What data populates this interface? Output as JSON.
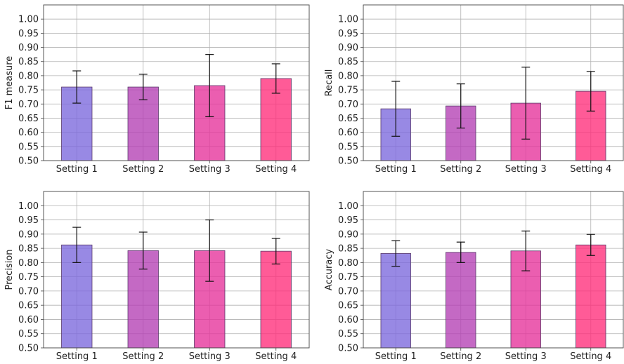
{
  "chart_data": [
    {
      "type": "bar",
      "ylabel": "F1 measure",
      "categories": [
        "Setting 1",
        "Setting 2",
        "Setting 3",
        "Setting 4"
      ],
      "values": [
        0.76,
        0.76,
        0.765,
        0.79
      ],
      "errors": [
        0.057,
        0.045,
        0.11,
        0.052
      ],
      "ylim": [
        0.5,
        1.05
      ],
      "yticks": [
        "0.50",
        "0.55",
        "0.60",
        "0.65",
        "0.70",
        "0.75",
        "0.80",
        "0.85",
        "0.90",
        "0.95",
        "1.00"
      ],
      "grid": true
    },
    {
      "type": "bar",
      "ylabel": "Recall",
      "categories": [
        "Setting 1",
        "Setting 2",
        "Setting 3",
        "Setting 4"
      ],
      "values": [
        0.683,
        0.693,
        0.703,
        0.745
      ],
      "errors": [
        0.097,
        0.078,
        0.127,
        0.07
      ],
      "ylim": [
        0.5,
        1.05
      ],
      "yticks": [
        "0.50",
        "0.55",
        "0.60",
        "0.65",
        "0.70",
        "0.75",
        "0.80",
        "0.85",
        "0.90",
        "0.95",
        "1.00"
      ],
      "grid": true
    },
    {
      "type": "bar",
      "ylabel": "Precision",
      "categories": [
        "Setting 1",
        "Setting 2",
        "Setting 3",
        "Setting 4"
      ],
      "values": [
        0.862,
        0.842,
        0.842,
        0.84
      ],
      "errors": [
        0.062,
        0.065,
        0.108,
        0.045
      ],
      "ylim": [
        0.5,
        1.05
      ],
      "yticks": [
        "0.50",
        "0.55",
        "0.60",
        "0.65",
        "0.70",
        "0.75",
        "0.80",
        "0.85",
        "0.90",
        "0.95",
        "1.00"
      ],
      "grid": true
    },
    {
      "type": "bar",
      "ylabel": "Accuracy",
      "categories": [
        "Setting 1",
        "Setting 2",
        "Setting 3",
        "Setting 4"
      ],
      "values": [
        0.832,
        0.836,
        0.841,
        0.862
      ],
      "errors": [
        0.045,
        0.036,
        0.07,
        0.037
      ],
      "ylim": [
        0.5,
        1.05
      ],
      "yticks": [
        "0.50",
        "0.55",
        "0.60",
        "0.65",
        "0.70",
        "0.75",
        "0.80",
        "0.85",
        "0.90",
        "0.95",
        "1.00"
      ],
      "grid": true
    }
  ],
  "colors": {
    "bars": [
      "#7b68dd",
      "#b33fb3",
      "#e6319a",
      "#ff2d7a"
    ],
    "bar_edge": "#5a3a6a",
    "grid": "#b0b0b0",
    "frame": "#444444",
    "errorbar": "#111111"
  }
}
